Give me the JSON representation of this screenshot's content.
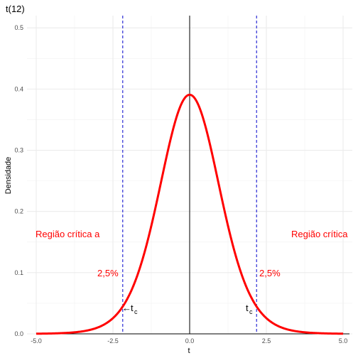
{
  "chart_data": {
    "type": "line",
    "title": "t(12)",
    "xlabel": "t",
    "ylabel": "Densidade",
    "xlim": [
      -5.3,
      5.3
    ],
    "ylim": [
      0,
      0.52
    ],
    "xticks": [
      -5.0,
      -2.5,
      0.0,
      2.5,
      5.0
    ],
    "xtick_labels": [
      "-5.0",
      "-2.5",
      "0.0",
      "2.5",
      "5.0"
    ],
    "yticks": [
      0.0,
      0.1,
      0.2,
      0.3,
      0.4,
      0.5
    ],
    "ytick_labels": [
      "0.0",
      "0.1",
      "0.2",
      "0.3",
      "0.4",
      "0.5"
    ],
    "grid": true,
    "series": [
      {
        "df": 12,
        "color": "#ff0000",
        "x": [
          -5.0,
          -4.5,
          -4.0,
          -3.5,
          -3.0,
          -2.5,
          -2.0,
          -1.5,
          -1.0,
          -0.5,
          0.0,
          0.5,
          1.0,
          1.5,
          2.0,
          2.5,
          3.0,
          3.5,
          4.0,
          4.5,
          5.0
        ],
        "y": [
          0.0005,
          0.0011,
          0.0025,
          0.0055,
          0.012,
          0.025,
          0.058,
          0.125,
          0.233,
          0.341,
          0.391,
          0.341,
          0.233,
          0.125,
          0.058,
          0.025,
          0.012,
          0.0055,
          0.0025,
          0.0011,
          0.0005
        ]
      }
    ],
    "critical_values": [
      -2.18,
      2.18
    ],
    "critical_line_color": "#0000cc",
    "zero_line_color": "#000000",
    "annotations": {
      "left_region": "Região crítica a",
      "right_region": "Região crítica",
      "left_pct": "2,5%",
      "right_pct": "2,5%",
      "tc_main": "t",
      "tc_sub": "c",
      "left_arrow": "←"
    }
  }
}
